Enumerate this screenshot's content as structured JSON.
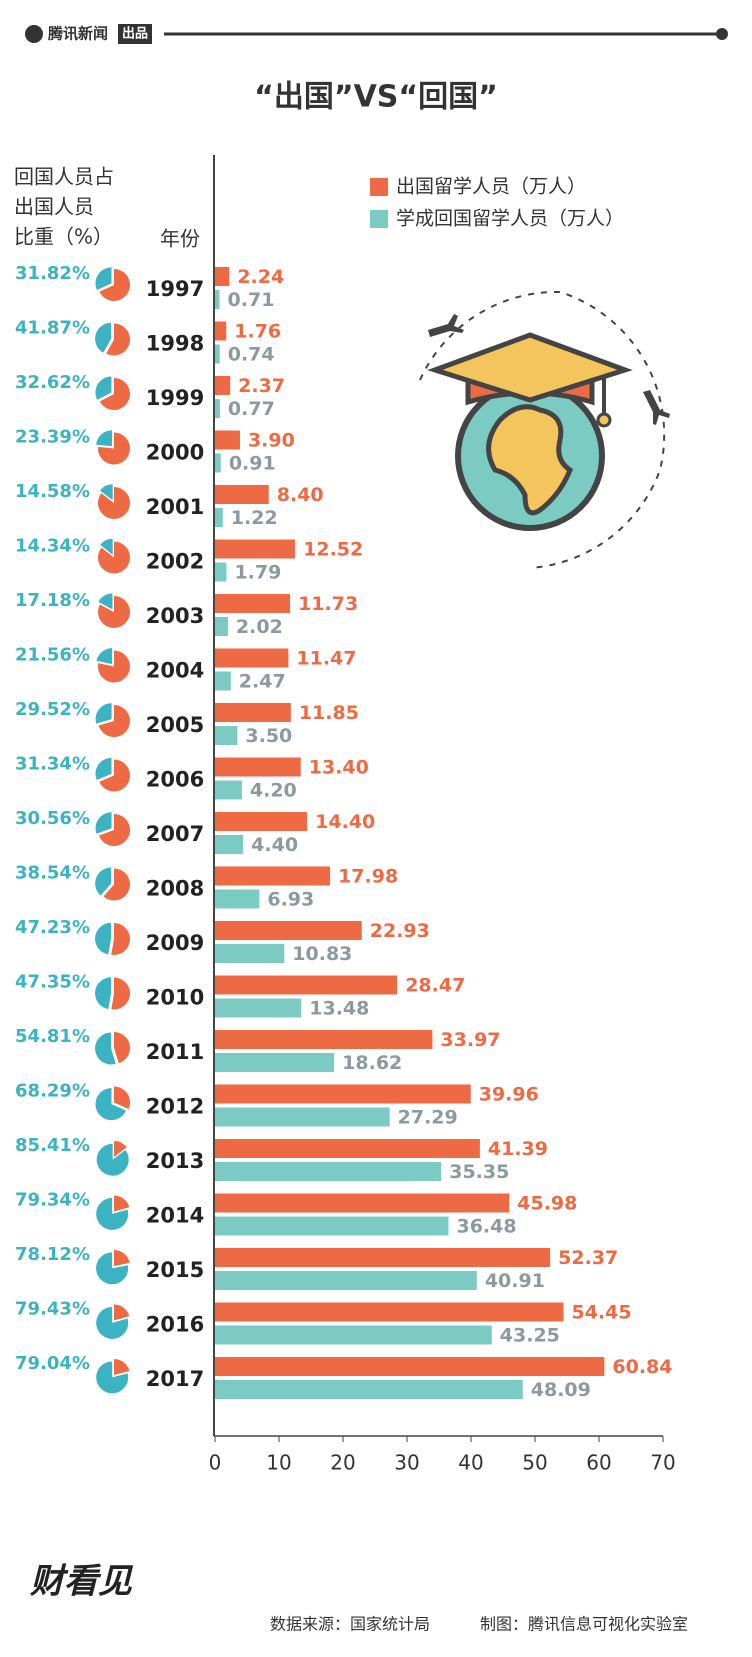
{
  "header": {
    "brand": "腾讯新闻",
    "brand_tag": "出品"
  },
  "chart_data": {
    "type": "bar",
    "orientation": "horizontal",
    "title": "“出国”VS“回国”",
    "category_label": "年份",
    "categories": [
      "1997",
      "1998",
      "1999",
      "2000",
      "2001",
      "2002",
      "2003",
      "2004",
      "2005",
      "2006",
      "2007",
      "2008",
      "2009",
      "2010",
      "2011",
      "2012",
      "2013",
      "2014",
      "2015",
      "2016",
      "2017"
    ],
    "series": [
      {
        "name": "出国留学人员（万人）",
        "color": "#ee6a45",
        "label_color": "#ee6a45",
        "values": [
          2.24,
          1.76,
          2.37,
          3.9,
          8.4,
          12.52,
          11.73,
          11.47,
          11.85,
          13.4,
          14.4,
          17.98,
          22.93,
          28.47,
          33.97,
          39.96,
          41.39,
          45.98,
          52.37,
          54.45,
          60.84
        ],
        "value_labels": [
          "2.24",
          "1.76",
          "2.37",
          "3.90",
          "8.40",
          "12.52",
          "11.73",
          "11.47",
          "11.85",
          "13.40",
          "14.40",
          "17.98",
          "22.93",
          "28.47",
          "33.97",
          "39.96",
          "41.39",
          "45.98",
          "52.37",
          "54.45",
          "60.84"
        ]
      },
      {
        "name": "学成回国留学人员（万人）",
        "color": "#7ccbc3",
        "label_color": "#8a9aa0",
        "values": [
          0.71,
          0.74,
          0.77,
          0.91,
          1.22,
          1.79,
          2.02,
          2.47,
          3.5,
          4.2,
          4.4,
          6.93,
          10.83,
          13.48,
          18.62,
          27.29,
          35.35,
          36.48,
          40.91,
          43.25,
          48.09
        ],
        "value_labels": [
          "0.71",
          "0.74",
          "0.77",
          "0.91",
          "1.22",
          "1.79",
          "2.02",
          "2.47",
          "3.50",
          "4.20",
          "4.40",
          "6.93",
          "10.83",
          "13.48",
          "18.62",
          "27.29",
          "35.35",
          "36.48",
          "40.91",
          "43.25",
          "48.09"
        ]
      }
    ],
    "ratio": {
      "label_lines": [
        "回国人员占",
        "出国人员",
        "比重（%）"
      ],
      "color": "#3bb3c3",
      "values": [
        31.82,
        41.87,
        32.62,
        23.39,
        14.58,
        14.34,
        17.18,
        21.56,
        29.52,
        31.34,
        30.56,
        38.54,
        47.23,
        47.35,
        54.81,
        68.29,
        85.41,
        79.34,
        78.12,
        79.43,
        79.04
      ],
      "value_labels": [
        "31.82%",
        "41.87%",
        "32.62%",
        "23.39%",
        "14.58%",
        "14.34%",
        "17.18%",
        "21.56%",
        "29.52%",
        "31.34%",
        "30.56%",
        "38.54%",
        "47.23%",
        "47.35%",
        "54.81%",
        "68.29%",
        "85.41%",
        "79.34%",
        "78.12%",
        "79.43%",
        "79.04%"
      ]
    },
    "xlim": [
      0,
      70
    ],
    "xticks": [
      0,
      10,
      20,
      30,
      40,
      50,
      60,
      70
    ]
  },
  "footer": {
    "logo": "财看见",
    "source": "数据来源：国家统计局",
    "credit": "制图：腾讯信息可视化实验室"
  }
}
